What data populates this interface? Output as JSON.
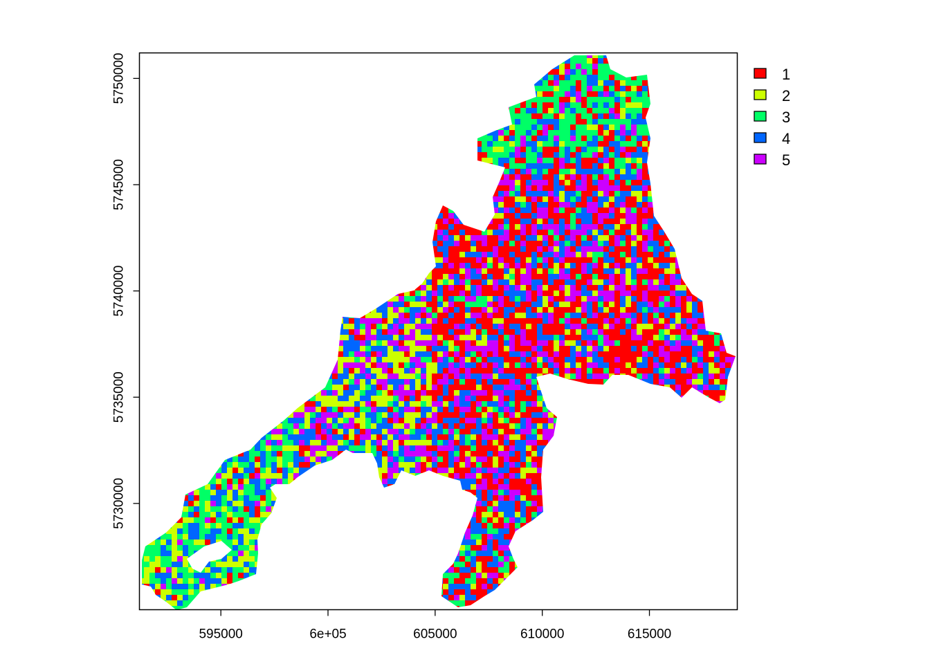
{
  "map": {
    "type": "raster-classification",
    "x_axis": {
      "range": [
        591200,
        619100
      ],
      "ticks": [
        {
          "value": 595000,
          "label": "595000"
        },
        {
          "value": 600000,
          "label": "6e+05"
        },
        {
          "value": 605000,
          "label": "605000"
        },
        {
          "value": 610000,
          "label": "610000"
        },
        {
          "value": 615000,
          "label": "615000"
        }
      ]
    },
    "y_axis": {
      "range": [
        5725000,
        5751200
      ],
      "ticks": [
        {
          "value": 5730000,
          "label": "5730000"
        },
        {
          "value": 5735000,
          "label": "5735000"
        },
        {
          "value": 5740000,
          "label": "5740000"
        },
        {
          "value": 5745000,
          "label": "5745000"
        },
        {
          "value": 5750000,
          "label": "5750000"
        }
      ]
    },
    "legend": {
      "position": "right",
      "items": [
        {
          "label": "1",
          "color": "#ff0000"
        },
        {
          "label": "2",
          "color": "#ccff00"
        },
        {
          "label": "3",
          "color": "#00ff66"
        },
        {
          "label": "4",
          "color": "#0066ff"
        },
        {
          "label": "5",
          "color": "#cc00ff"
        }
      ]
    }
  }
}
